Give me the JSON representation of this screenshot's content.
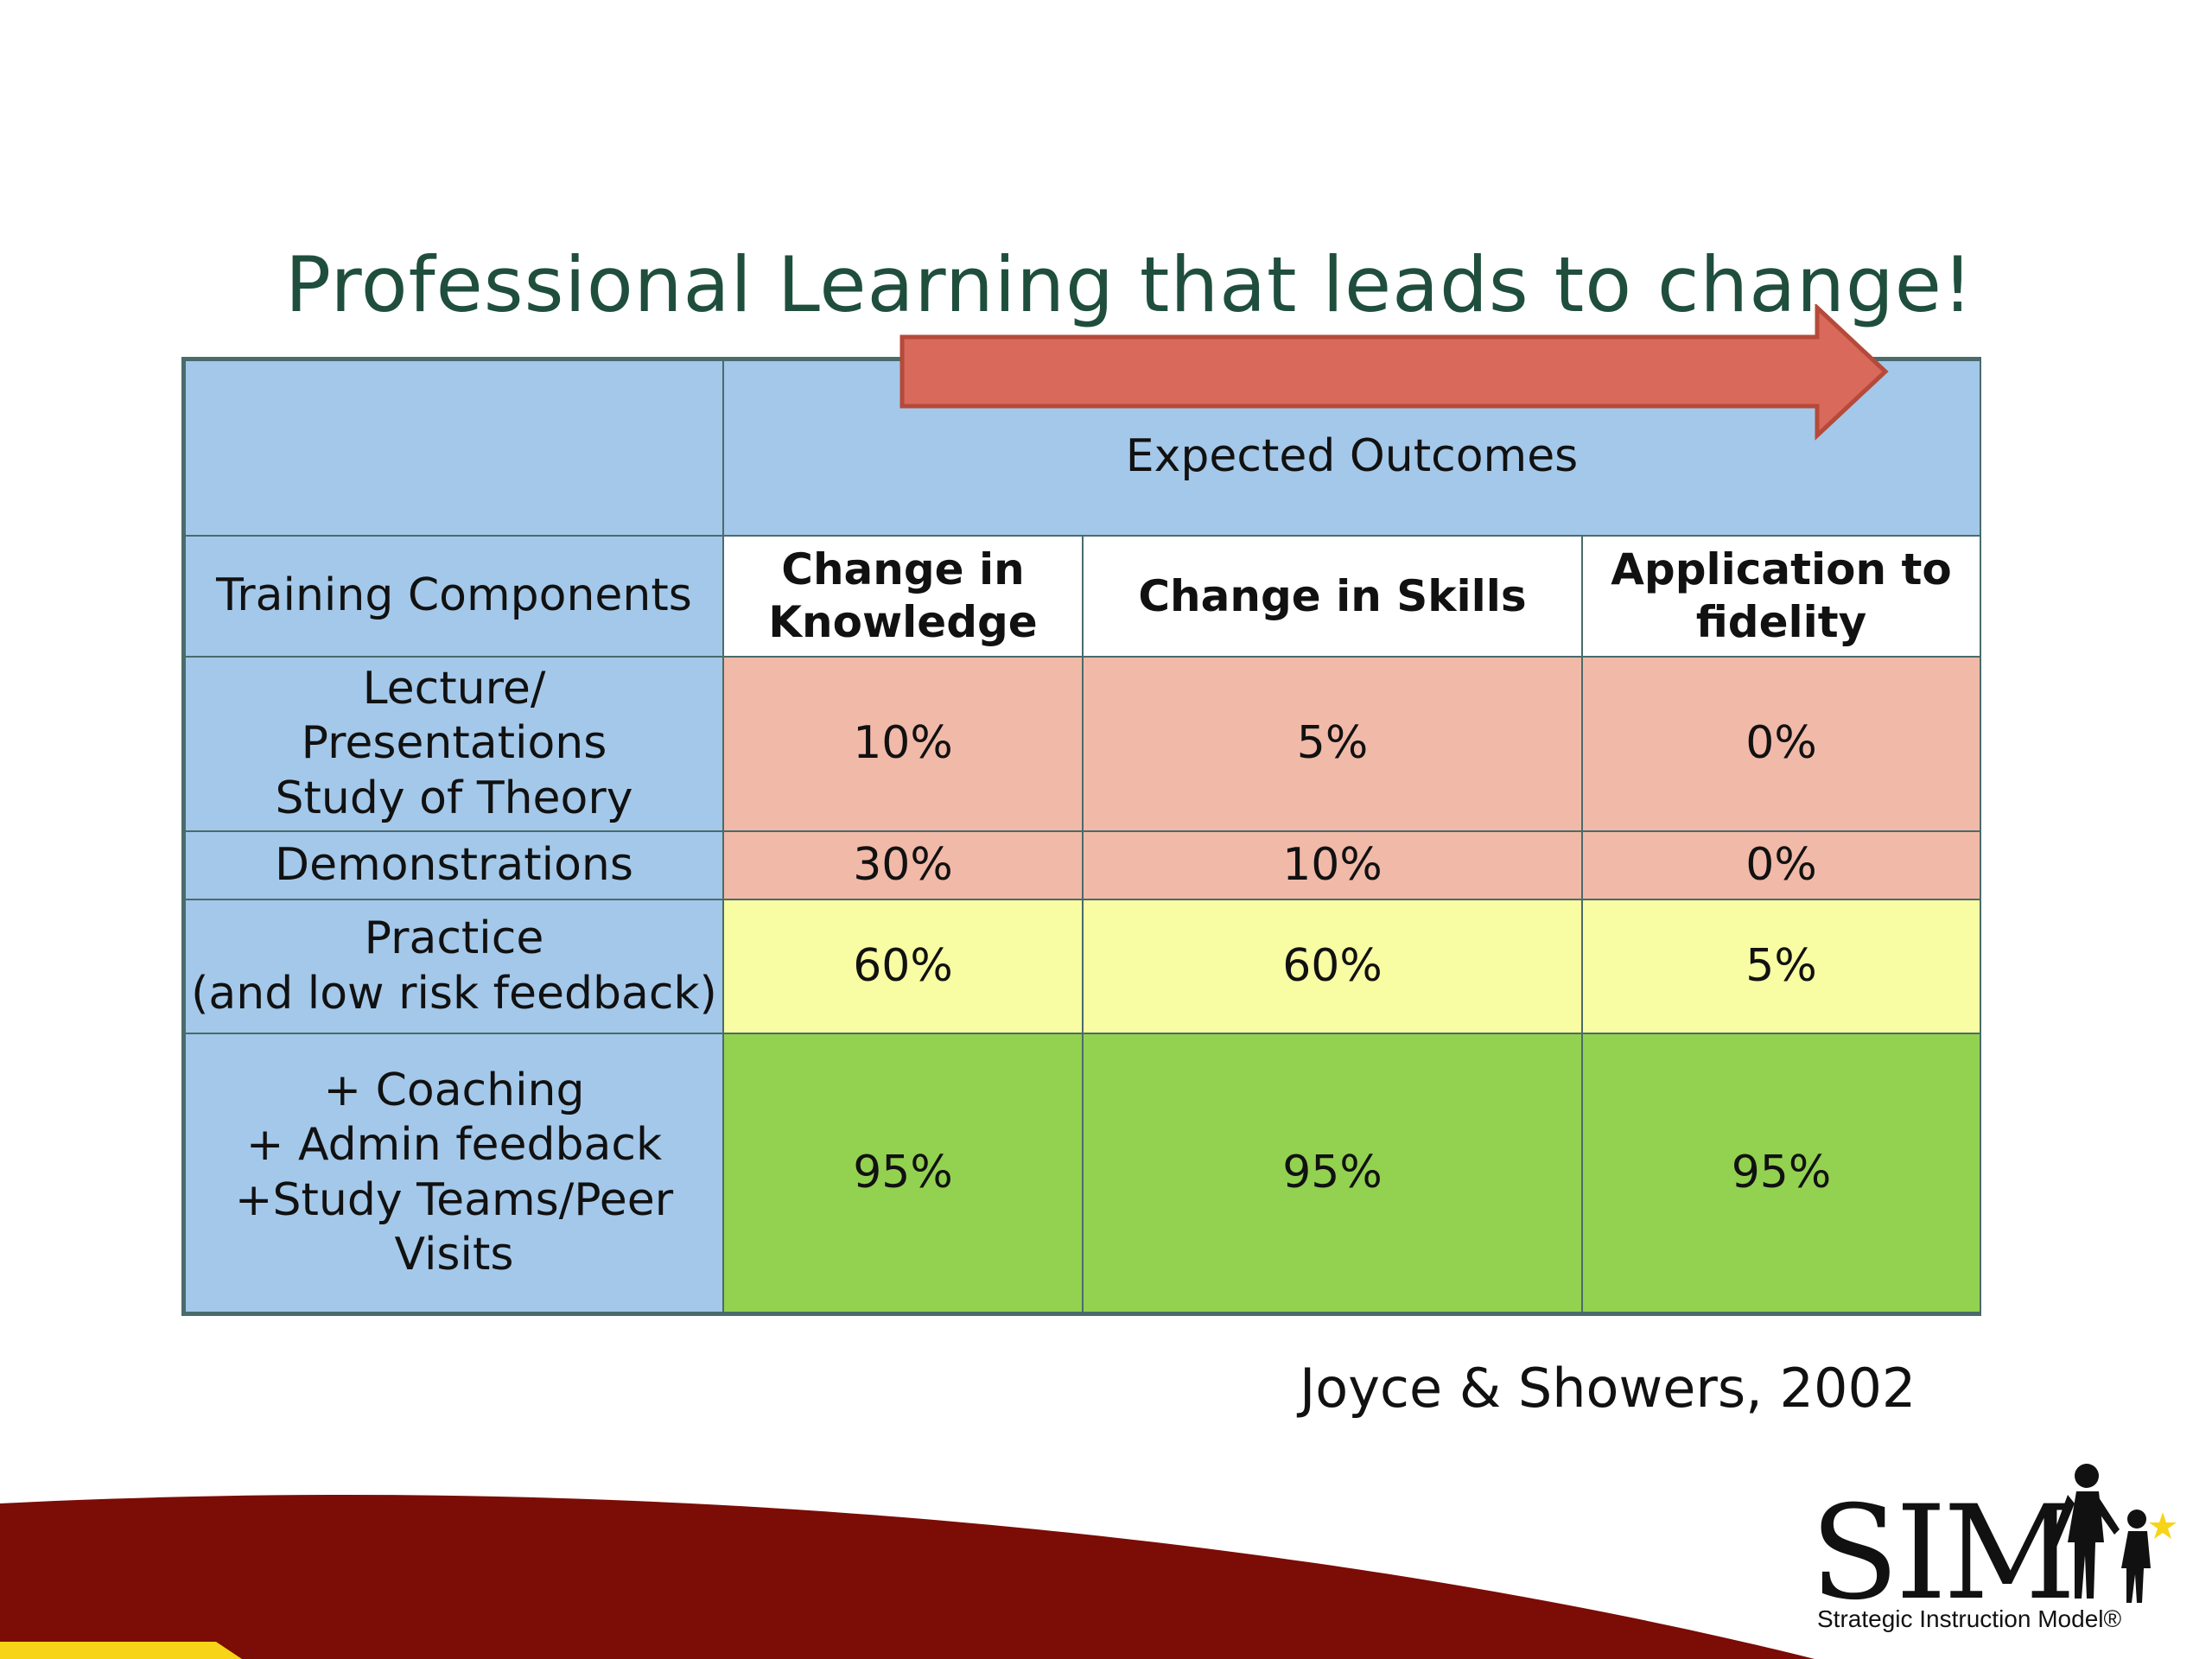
{
  "slide": {
    "title": "Professional Learning that leads to change!",
    "citation": "Joyce & Showers, 2002"
  },
  "table": {
    "expected_outcomes": "Expected Outcomes",
    "row_header_label": "Training Components",
    "columns": [
      "Change in Knowledge",
      "Change in Skills",
      "Application to fidelity"
    ],
    "rows": [
      {
        "component": "Lecture/\nPresentations\nStudy of Theory",
        "values": [
          "10%",
          "5%",
          "0%"
        ]
      },
      {
        "component": "Demonstrations",
        "values": [
          "30%",
          "10%",
          "0%"
        ]
      },
      {
        "component": "Practice\n(and low risk feedback)",
        "values": [
          "60%",
          "60%",
          "5%"
        ]
      },
      {
        "component": "+ Coaching\n+ Admin feedback\n+Study Teams/Peer\nVisits",
        "values": [
          "95%",
          "95%",
          "95%"
        ]
      }
    ]
  },
  "logo": {
    "name": "SIM",
    "subtitle": "Strategic Instruction Model®"
  },
  "colors": {
    "blue": "#a4c8e9",
    "salmon": "#f1b9a8",
    "yellow": "#f8fca2",
    "green": "#93d150",
    "arrow": "#d9695a",
    "banner": "#7b0c06",
    "accent": "#f7d417"
  }
}
